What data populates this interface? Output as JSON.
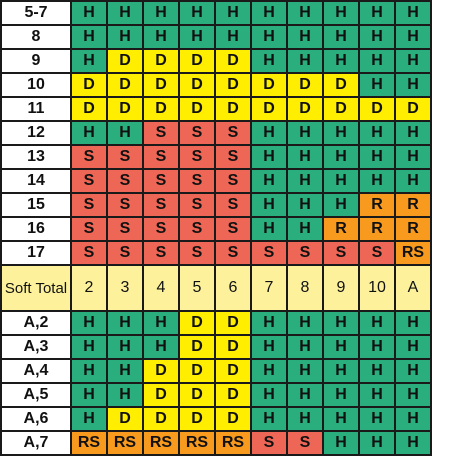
{
  "colors": {
    "H": "#2bae7e",
    "S": "#ee6655",
    "D": "#ffee00",
    "R": "#f79a1e",
    "RS": "#f79a1e",
    "header": "#fdf29b",
    "blank": "#ffffff"
  },
  "header": {
    "label": "Soft Total",
    "columns": [
      "2",
      "3",
      "4",
      "5",
      "6",
      "7",
      "8",
      "9",
      "10",
      "A"
    ]
  },
  "hard_rows": [
    {
      "label": "",
      "cells": [
        "",
        "",
        "",
        "",
        "",
        "",
        "",
        "",
        "",
        ""
      ]
    },
    {
      "label": "5-7",
      "cells": [
        "H",
        "H",
        "H",
        "H",
        "H",
        "H",
        "H",
        "H",
        "H",
        "H"
      ]
    },
    {
      "label": "8",
      "cells": [
        "H",
        "H",
        "H",
        "H",
        "H",
        "H",
        "H",
        "H",
        "H",
        "H"
      ]
    },
    {
      "label": "9",
      "cells": [
        "H",
        "D",
        "D",
        "D",
        "D",
        "H",
        "H",
        "H",
        "H",
        "H"
      ]
    },
    {
      "label": "10",
      "cells": [
        "D",
        "D",
        "D",
        "D",
        "D",
        "D",
        "D",
        "D",
        "H",
        "H"
      ]
    },
    {
      "label": "11",
      "cells": [
        "D",
        "D",
        "D",
        "D",
        "D",
        "D",
        "D",
        "D",
        "D",
        "D"
      ]
    },
    {
      "label": "12",
      "cells": [
        "H",
        "H",
        "S",
        "S",
        "S",
        "H",
        "H",
        "H",
        "H",
        "H"
      ]
    },
    {
      "label": "13",
      "cells": [
        "S",
        "S",
        "S",
        "S",
        "S",
        "H",
        "H",
        "H",
        "H",
        "H"
      ]
    },
    {
      "label": "14",
      "cells": [
        "S",
        "S",
        "S",
        "S",
        "S",
        "H",
        "H",
        "H",
        "H",
        "H"
      ]
    },
    {
      "label": "15",
      "cells": [
        "S",
        "S",
        "S",
        "S",
        "S",
        "H",
        "H",
        "H",
        "R",
        "R"
      ]
    },
    {
      "label": "16",
      "cells": [
        "S",
        "S",
        "S",
        "S",
        "S",
        "H",
        "H",
        "R",
        "R",
        "R"
      ]
    },
    {
      "label": "17",
      "cells": [
        "S",
        "S",
        "S",
        "S",
        "S",
        "S",
        "S",
        "S",
        "S",
        "RS"
      ]
    }
  ],
  "soft_rows": [
    {
      "label": "A,2",
      "cells": [
        "H",
        "H",
        "H",
        "D",
        "D",
        "H",
        "H",
        "H",
        "H",
        "H"
      ]
    },
    {
      "label": "A,3",
      "cells": [
        "H",
        "H",
        "H",
        "D",
        "D",
        "H",
        "H",
        "H",
        "H",
        "H"
      ]
    },
    {
      "label": "A,4",
      "cells": [
        "H",
        "H",
        "D",
        "D",
        "D",
        "H",
        "H",
        "H",
        "H",
        "H"
      ]
    },
    {
      "label": "A,5",
      "cells": [
        "H",
        "H",
        "D",
        "D",
        "D",
        "H",
        "H",
        "H",
        "H",
        "H"
      ]
    },
    {
      "label": "A,6",
      "cells": [
        "H",
        "D",
        "D",
        "D",
        "D",
        "H",
        "H",
        "H",
        "H",
        "H"
      ]
    },
    {
      "label": "A,7",
      "cells": [
        "RS",
        "RS",
        "RS",
        "RS",
        "RS",
        "S",
        "S",
        "H",
        "H",
        "H"
      ]
    }
  ]
}
